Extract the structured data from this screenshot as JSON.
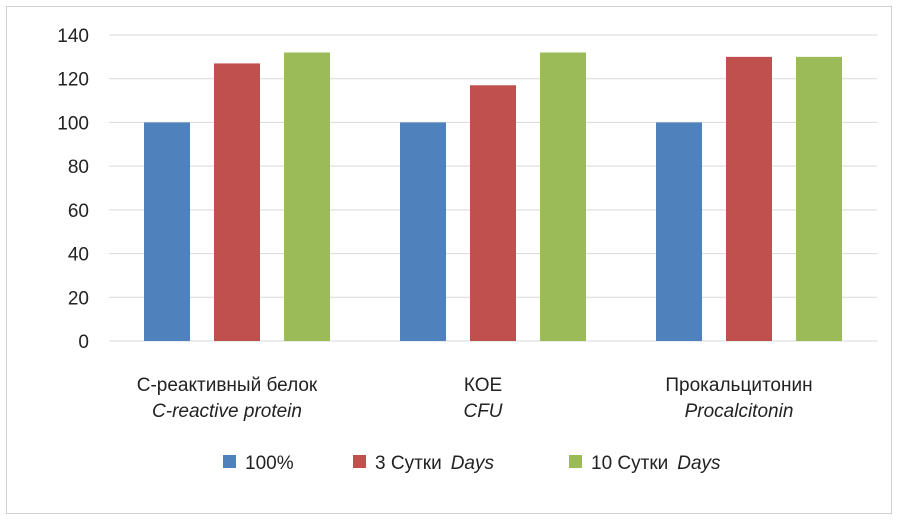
{
  "chart_data": {
    "type": "bar",
    "categories": [
      {
        "line1": "С-реактивный белок",
        "line2": "C-reactive protein"
      },
      {
        "line1": "КОЕ",
        "line2": "CFU"
      },
      {
        "line1": "Прокальцитонин",
        "line2": "Procalcitonin"
      }
    ],
    "series": [
      {
        "name": "100%",
        "name_ru": "100%",
        "name_en": "",
        "color": "#4f81bd",
        "values": [
          100,
          100,
          100
        ]
      },
      {
        "name": "3 Сутки Days",
        "name_ru": "3 Сутки",
        "name_en": "Days",
        "color": "#c0504d",
        "values": [
          127,
          117,
          130
        ]
      },
      {
        "name": "10 Сутки Days",
        "name_ru": "10 Сутки",
        "name_en": "Days",
        "color": "#9bbb59",
        "values": [
          132,
          132,
          130
        ]
      }
    ],
    "ylim": [
      0,
      140
    ],
    "yticks": [
      "0",
      "20",
      "40",
      "60",
      "80",
      "100",
      "120",
      "140"
    ],
    "grid": true,
    "legend": "bottom",
    "title": "",
    "xlabel": "",
    "ylabel": ""
  }
}
